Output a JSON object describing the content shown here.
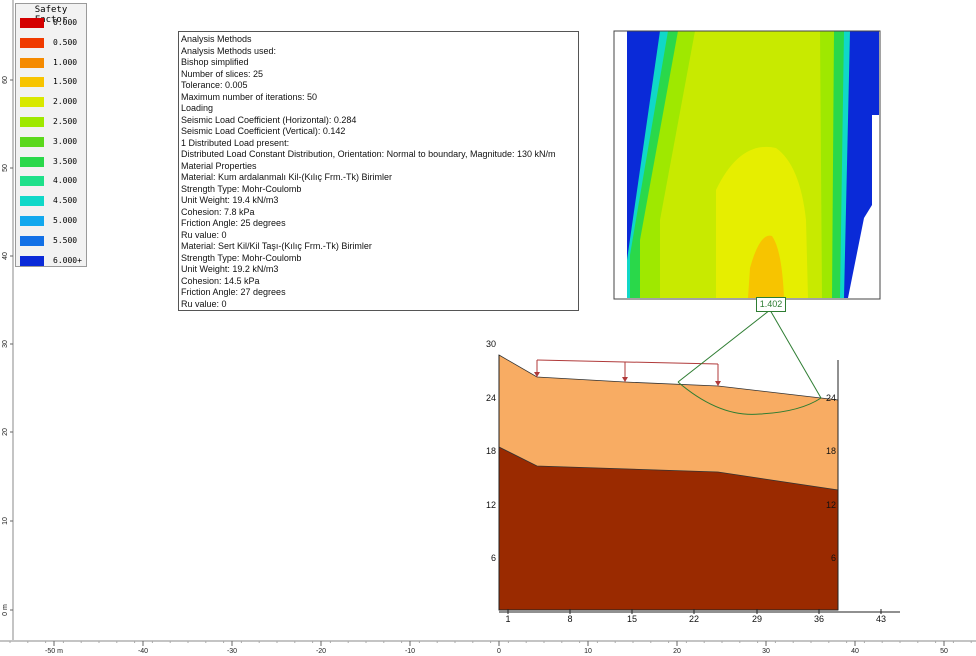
{
  "legend": {
    "title": "Safety Factor",
    "items": [
      {
        "label": "0.000",
        "color": "#d40000"
      },
      {
        "label": "0.500",
        "color": "#f03a00"
      },
      {
        "label": "1.000",
        "color": "#f58a00"
      },
      {
        "label": "1.500",
        "color": "#f7c400"
      },
      {
        "label": "2.000",
        "color": "#d8e800"
      },
      {
        "label": "2.500",
        "color": "#9fe800"
      },
      {
        "label": "3.000",
        "color": "#5bd81c"
      },
      {
        "label": "3.500",
        "color": "#2ad84a"
      },
      {
        "label": "4.000",
        "color": "#1ee08a"
      },
      {
        "label": "4.500",
        "color": "#10d8c8"
      },
      {
        "label": "5.000",
        "color": "#12a8ee"
      },
      {
        "label": "5.500",
        "color": "#1270e6"
      },
      {
        "label": "6.000+",
        "color": "#0a2ad8"
      }
    ]
  },
  "info_box": {
    "lines": [
      "Analysis Methods",
      "Analysis Methods used:",
      "Bishop simplified",
      "Number of slices: 25",
      "Tolerance: 0.005",
      "Maximum number of iterations: 50",
      "Loading",
      "Seismic Load Coefficient (Horizontal): 0.284",
      "Seismic Load Coefficient (Vertical): 0.142",
      "1 Distributed Load present:",
      "Distributed Load Constant Distribution, Orientation:  Normal to boundary, Magnitude:  130 kN/m",
      "Material Properties",
      "Material: Kum ardalanmalı Kil-(Kılıç Frm.-Tk) Birimler",
      "Strength Type: Mohr-Coulomb",
      "Unit Weight: 19.4 kN/m3",
      "Cohesion: 7.8 kPa",
      "Friction Angle: 25 degrees",
      "Ru value: 0",
      "Material: Sert Kil/Kil Taşı-(Kılıç Frm.-Tk) Birimler",
      "Strength Type: Mohr-Coulomb",
      "Unit Weight: 19.2 kN/m3",
      "Cohesion: 14.5 kPa",
      "Friction Angle: 27 degrees",
      "Ru value: 0"
    ]
  },
  "safety_factor_label": "1.402",
  "bottom_ruler": {
    "labels": [
      "-50 m",
      "-40",
      "-30",
      "-20",
      "-10",
      "0",
      "10",
      "20",
      "30",
      "40",
      "50"
    ]
  },
  "left_ruler": {
    "labels": [
      "60",
      "50",
      "40",
      "30",
      "20",
      "10",
      "0 m"
    ]
  },
  "model_axes": {
    "x_labels": [
      "1",
      "8",
      "15",
      "22",
      "29",
      "36",
      "43"
    ],
    "y_left_labels": [
      "30",
      "24",
      "18",
      "12",
      "6"
    ],
    "y_right_labels": [
      "24",
      "18",
      "12",
      "6"
    ]
  },
  "colors": {
    "upper_layer": "#f8ac63",
    "lower_layer": "#9a2a00",
    "load_line": "#b03a3a",
    "slip_surface": "#2e7d32",
    "grid_contour_blue": "#0a2ad8"
  }
}
